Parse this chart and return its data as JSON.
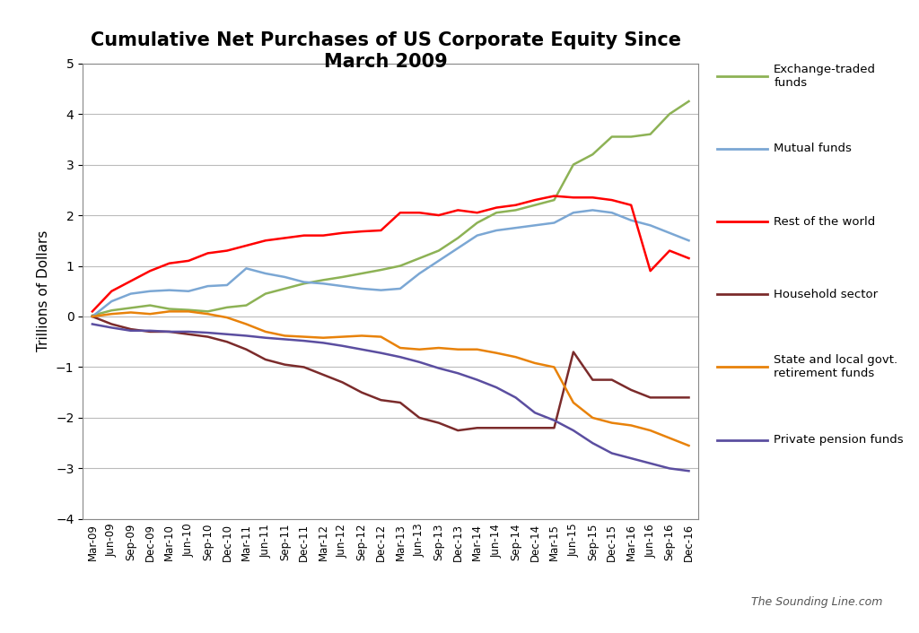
{
  "title": "Cumulative Net Purchases of US Corporate Equity Since\nMarch 2009",
  "ylabel": "Trillions of Dollars",
  "watermark": "The Sounding Line.com",
  "ylim": [
    -4,
    5
  ],
  "yticks": [
    -4,
    -3,
    -2,
    -1,
    0,
    1,
    2,
    3,
    4,
    5
  ],
  "x_labels": [
    "Mar-09",
    "Jun-09",
    "Sep-09",
    "Dec-09",
    "Mar-10",
    "Jun-10",
    "Sep-10",
    "Dec-10",
    "Mar-11",
    "Jun-11",
    "Sep-11",
    "Dec-11",
    "Mar-12",
    "Jun-12",
    "Sep-12",
    "Dec-12",
    "Mar-13",
    "Jun-13",
    "Sep-13",
    "Dec-13",
    "Mar-14",
    "Jun-14",
    "Sep-14",
    "Dec-14",
    "Mar-15",
    "Jun-15",
    "Sep-15",
    "Dec-15",
    "Mar-16",
    "Jun-16",
    "Sep-16",
    "Dec-16"
  ],
  "series": {
    "Exchange-traded\nfunds": {
      "color": "#8DB255",
      "data": [
        0.02,
        0.12,
        0.17,
        0.22,
        0.15,
        0.13,
        0.1,
        0.18,
        0.22,
        0.45,
        0.55,
        0.65,
        0.72,
        0.78,
        0.85,
        0.92,
        1.0,
        1.15,
        1.3,
        1.55,
        1.85,
        2.05,
        2.1,
        2.2,
        2.3,
        3.0,
        3.2,
        3.55,
        3.55,
        3.6,
        4.0,
        4.25
      ]
    },
    "Mutual funds": {
      "color": "#7BA7D4",
      "data": [
        0.0,
        0.3,
        0.45,
        0.5,
        0.52,
        0.5,
        0.6,
        0.62,
        0.95,
        0.85,
        0.78,
        0.68,
        0.65,
        0.6,
        0.55,
        0.52,
        0.55,
        0.85,
        1.1,
        1.35,
        1.6,
        1.7,
        1.75,
        1.8,
        1.85,
        2.05,
        2.1,
        2.05,
        1.9,
        1.8,
        1.65,
        1.5
      ]
    },
    "Rest of the world": {
      "color": "#FF0000",
      "data": [
        0.1,
        0.5,
        0.7,
        0.9,
        1.05,
        1.1,
        1.25,
        1.3,
        1.4,
        1.5,
        1.55,
        1.6,
        1.6,
        1.65,
        1.68,
        1.7,
        2.05,
        2.05,
        2.0,
        2.1,
        2.05,
        2.15,
        2.2,
        2.3,
        2.38,
        2.35,
        2.35,
        2.3,
        2.2,
        0.9,
        1.3,
        1.15
      ]
    },
    "Household sector": {
      "color": "#7B2B2B",
      "data": [
        0.0,
        -0.15,
        -0.25,
        -0.3,
        -0.3,
        -0.35,
        -0.4,
        -0.5,
        -0.65,
        -0.85,
        -0.95,
        -1.0,
        -1.15,
        -1.3,
        -1.5,
        -1.65,
        -1.7,
        -2.0,
        -2.1,
        -2.25,
        -2.2,
        -2.2,
        -2.2,
        -2.2,
        -2.2,
        -0.7,
        -1.25,
        -1.25,
        -1.45,
        -1.6,
        -1.6,
        -1.6
      ]
    },
    "State and local govt.\nretirement funds": {
      "color": "#E8820A",
      "data": [
        0.0,
        0.05,
        0.08,
        0.05,
        0.1,
        0.1,
        0.05,
        -0.02,
        -0.15,
        -0.3,
        -0.38,
        -0.4,
        -0.42,
        -0.4,
        -0.38,
        -0.4,
        -0.62,
        -0.65,
        -0.62,
        -0.65,
        -0.65,
        -0.72,
        -0.8,
        -0.92,
        -1.0,
        -1.7,
        -2.0,
        -2.1,
        -2.15,
        -2.25,
        -2.4,
        -2.55
      ]
    },
    "Private pension funds": {
      "color": "#5B4EA0",
      "data": [
        -0.15,
        -0.22,
        -0.28,
        -0.28,
        -0.3,
        -0.3,
        -0.32,
        -0.35,
        -0.38,
        -0.42,
        -0.45,
        -0.48,
        -0.52,
        -0.58,
        -0.65,
        -0.72,
        -0.8,
        -0.9,
        -1.02,
        -1.12,
        -1.25,
        -1.4,
        -1.6,
        -1.9,
        -2.05,
        -2.25,
        -2.5,
        -2.7,
        -2.8,
        -2.9,
        -3.0,
        -3.05
      ]
    }
  },
  "legend_labels": [
    "Exchange-traded\nfunds",
    "Mutual funds",
    "Rest of the world",
    "Household sector",
    "State and local govt.\nretirement funds",
    "Private pension funds"
  ],
  "series_keys": [
    "Exchange-traded\nfunds",
    "Mutual funds",
    "Rest of the world",
    "Household sector",
    "State and local govt.\nretirement funds",
    "Private pension funds"
  ]
}
